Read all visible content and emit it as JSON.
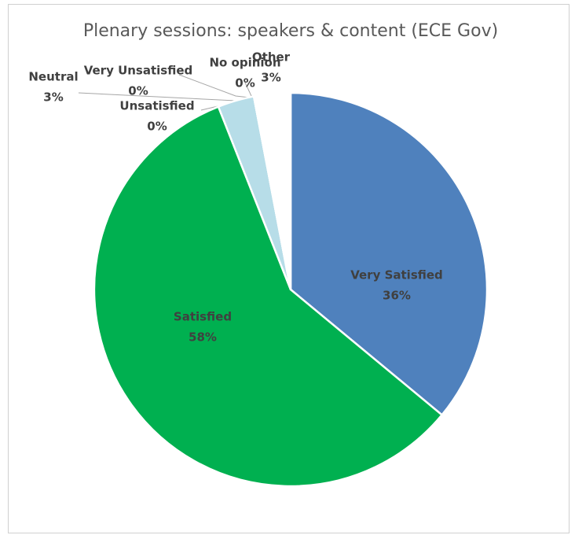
{
  "chart_data": {
    "type": "pie",
    "title": "Plenary sessions: speakers & content (ECE Gov)",
    "categories": [
      "Very Satisfied",
      "Satisfied",
      "Neutral",
      "Unsatisfied",
      "Very Unsatisfied",
      "No opinion",
      "Other"
    ],
    "values": [
      36,
      58,
      3,
      0,
      0,
      0,
      3
    ],
    "value_labels": [
      "36%",
      "58%",
      "3%",
      "0%",
      "0%",
      "0%",
      "3%"
    ],
    "colors": [
      "#4f81bd",
      "#00b050",
      "#b7dde8",
      "#c0504d",
      "#7f7f7f",
      "#f79646",
      "#ffffff"
    ]
  }
}
